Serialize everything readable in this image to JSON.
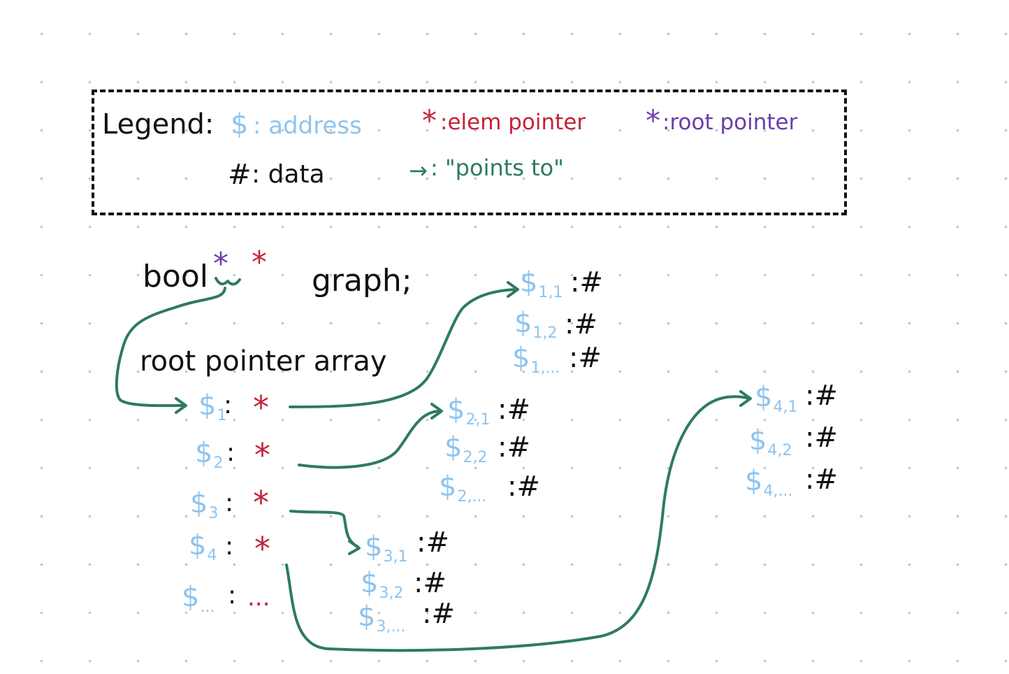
{
  "legend": {
    "title": "Legend:",
    "address_symbol": "$",
    "address_label": ": address",
    "elem_symbol": "*",
    "elem_label": ":elem pointer",
    "root_symbol": "*",
    "root_label": ":root pointer",
    "data_symbol": "#",
    "data_label": ": data",
    "arrow_symbol": "→",
    "arrow_label": ": \"points to\""
  },
  "declaration": {
    "type": "bool",
    "root_star": "*",
    "elem_star": "*",
    "name": "graph;"
  },
  "root_array": {
    "label": "root pointer array",
    "rows": [
      {
        "addr": "$",
        "sub": "1",
        "sep": ":",
        "ptr": "*"
      },
      {
        "addr": "$",
        "sub": "2",
        "sep": ":",
        "ptr": "*"
      },
      {
        "addr": "$",
        "sub": "3",
        "sep": ":",
        "ptr": "*"
      },
      {
        "addr": "$",
        "sub": "4",
        "sep": ":",
        "ptr": "*"
      },
      {
        "addr": "$",
        "sub": "...",
        "sep": ":",
        "ptr": "..."
      }
    ]
  },
  "arrays": [
    {
      "rows": [
        {
          "addr": "$",
          "sub": "1,1",
          "value": ":#"
        },
        {
          "addr": "$",
          "sub": "1,2",
          "value": ":#"
        },
        {
          "addr": "$",
          "sub": "1,...",
          "value": ":#"
        }
      ]
    },
    {
      "rows": [
        {
          "addr": "$",
          "sub": "2,1",
          "value": ":#"
        },
        {
          "addr": "$",
          "sub": "2,2",
          "value": ":#"
        },
        {
          "addr": "$",
          "sub": "2,...",
          "value": ":#"
        }
      ]
    },
    {
      "rows": [
        {
          "addr": "$",
          "sub": "3,1",
          "value": ":#"
        },
        {
          "addr": "$",
          "sub": "3,2",
          "value": ":#"
        },
        {
          "addr": "$",
          "sub": "3,...",
          "value": ":#"
        }
      ]
    },
    {
      "rows": [
        {
          "addr": "$",
          "sub": "4,1",
          "value": ":#"
        },
        {
          "addr": "$",
          "sub": "4,2",
          "value": ":#"
        },
        {
          "addr": "$",
          "sub": "4,...",
          "value": ":#"
        }
      ]
    }
  ],
  "colors": {
    "ink": "#111111",
    "address": "#8ec4ee",
    "elem_pointer": "#c4223b",
    "root_pointer": "#6a3cae",
    "arrow": "#2e7a63",
    "grid_dot": "#c4c4c4"
  }
}
